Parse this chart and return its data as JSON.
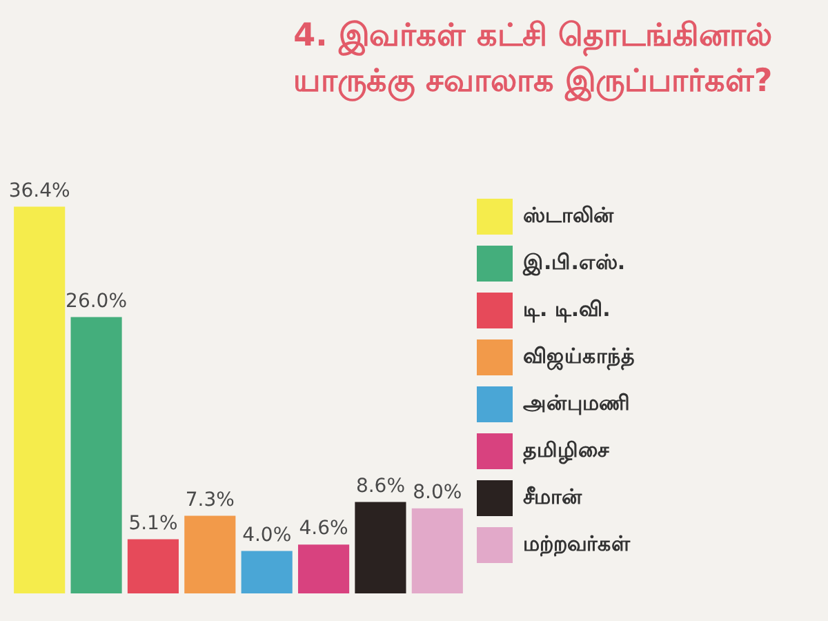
{
  "chart_data": {
    "type": "bar",
    "title": "4. இவர்கள் கட்சி தொடங்கினால்\nயாருக்கு சவாலாக இருப்பார்கள்?",
    "categories": [
      null
    ],
    "series": [
      {
        "name": "ஸ்டாலின்",
        "color": "#f5ec4c",
        "values": [
          36.4
        ],
        "value_labels": [
          "36.4%"
        ]
      },
      {
        "name": "இ.பி.எஸ்.",
        "color": "#44ae7c",
        "values": [
          26.0
        ],
        "value_labels": [
          "26.0%"
        ]
      },
      {
        "name": "டி. டி.வி.",
        "color": "#e64a5a",
        "values": [
          5.1
        ],
        "value_labels": [
          "5.1%"
        ]
      },
      {
        "name": "விஜய்காந்த்",
        "color": "#f29a4a",
        "values": [
          7.3
        ],
        "value_labels": [
          "7.3%"
        ]
      },
      {
        "name": "அன்புமணி",
        "color": "#4aa6d6",
        "values": [
          4.0
        ],
        "value_labels": [
          "4.0%"
        ]
      },
      {
        "name": "தமிழிசை",
        "color": "#d8427f",
        "values": [
          4.6
        ],
        "value_labels": [
          "4.6%"
        ]
      },
      {
        "name": "சீமான்",
        "color": "#2a2220",
        "values": [
          8.6
        ],
        "value_labels": [
          "8.6%"
        ]
      },
      {
        "name": "மற்றவர்கள்",
        "color": "#e2a9c9",
        "values": [
          8.0
        ],
        "value_labels": [
          "8.0%"
        ]
      }
    ],
    "legend": "right",
    "tick_labels": false
  }
}
